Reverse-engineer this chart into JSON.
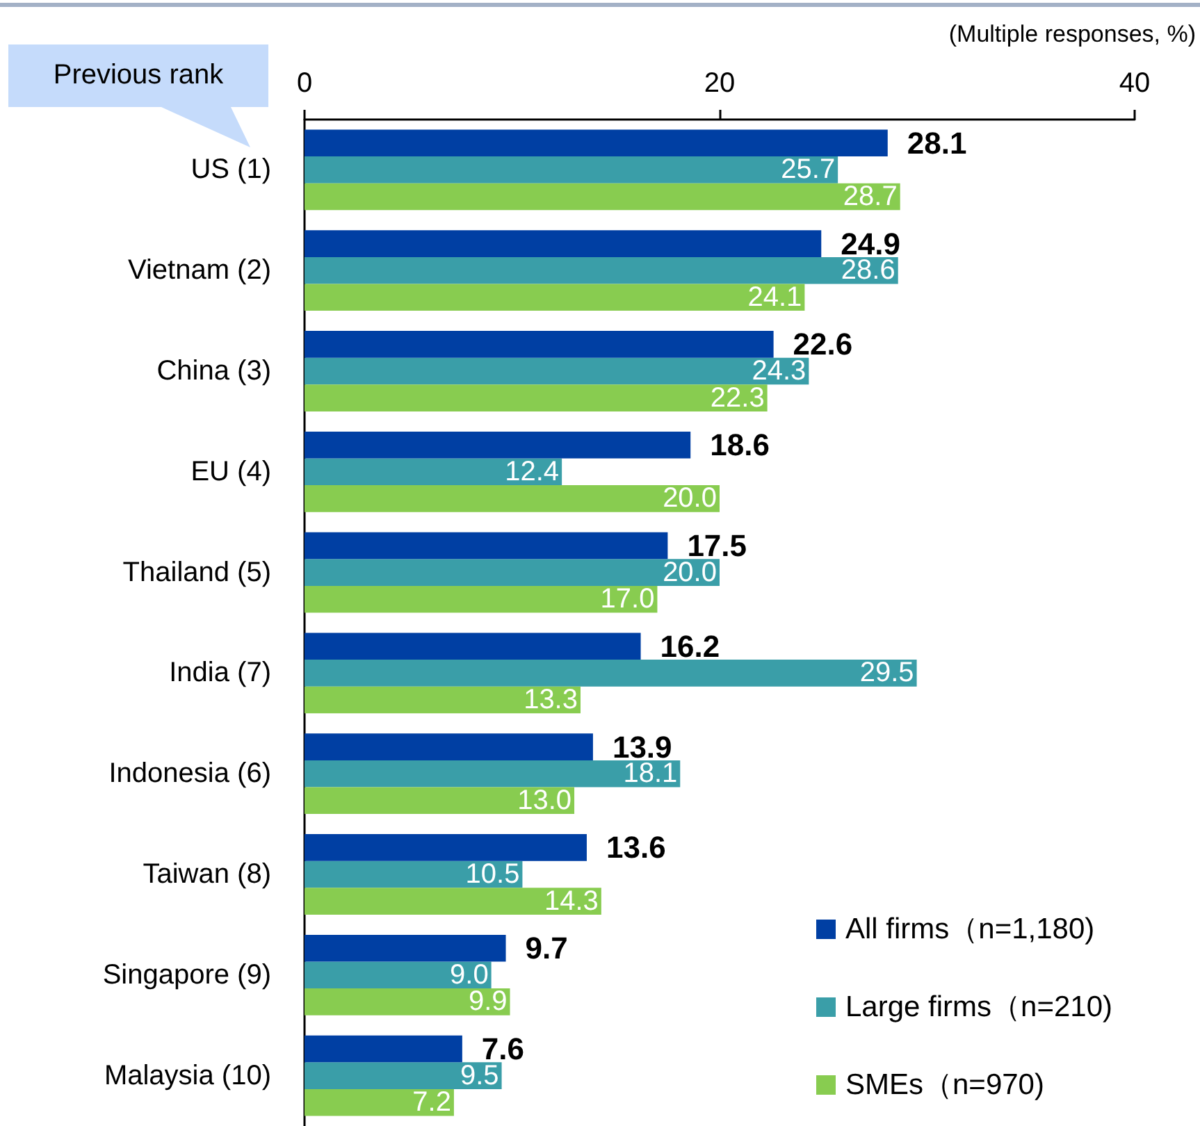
{
  "chart_data": {
    "type": "bar",
    "orientation": "horizontal",
    "xlabel": "(Multiple responses, %)",
    "annotations": [
      "Previous rank"
    ],
    "categories": [
      "US (1)",
      "Vietnam (2)",
      "China (3)",
      "EU (4)",
      "Thailand (5)",
      "India (7)",
      "Indonesia (6)",
      "Taiwan (8)",
      "Singapore (9)",
      "Malaysia (10)"
    ],
    "series": [
      {
        "name": "All firms（n=1,180)",
        "color": "#003fa3",
        "values": [
          28.1,
          24.9,
          22.6,
          18.6,
          17.5,
          16.2,
          13.9,
          13.6,
          9.7,
          7.6
        ],
        "value_labels": [
          "28.1",
          "24.9",
          "22.6",
          "18.6",
          "17.5",
          "16.2",
          "13.9",
          "13.6",
          "9.7",
          "7.6"
        ]
      },
      {
        "name": "Large firms（n=210)",
        "color": "#3a9ea8",
        "values": [
          25.7,
          28.6,
          24.3,
          12.4,
          20.0,
          29.5,
          18.1,
          10.5,
          9.0,
          9.5
        ],
        "value_labels": [
          "25.7",
          "28.6",
          "24.3",
          "12.4",
          "20.0",
          "29.5",
          "18.1",
          "10.5",
          "9.0",
          "9.5"
        ]
      },
      {
        "name": "SMEs（n=970)",
        "color": "#88cc50",
        "values": [
          28.7,
          24.1,
          22.3,
          20.0,
          17.0,
          13.3,
          13.0,
          14.3,
          9.9,
          7.2
        ],
        "value_labels": [
          "28.7",
          "24.1",
          "22.3",
          "20.0",
          "17.0",
          "13.3",
          "13.0",
          "14.3",
          "9.9",
          "7.2"
        ]
      }
    ],
    "xlim": [
      0,
      40
    ],
    "xticks": [
      0,
      20,
      40
    ],
    "legend": "bottom right"
  }
}
